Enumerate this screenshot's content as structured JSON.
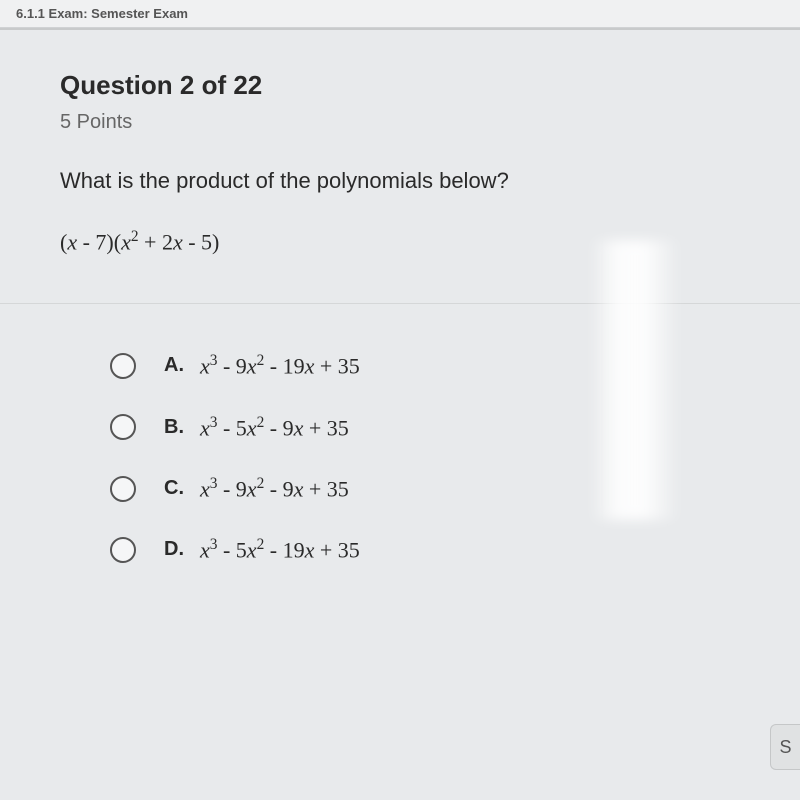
{
  "topbar": {
    "text": "6.1.1 Exam: Semester Exam"
  },
  "question": {
    "header": "Question 2 of 22",
    "points": "5 Points",
    "prompt": "What is the product of the polynomials below?",
    "expression_html": "(<span class='var'>x</span> - 7)(<span class='var'>x</span><sup>2</sup> + 2<span class='var'>x</span> - 5)"
  },
  "options": [
    {
      "label": "A.",
      "html": "<span class='var'>x</span><sup>3</sup> - 9<span class='var'>x</span><sup>2</sup> - 19<span class='var'>x</span> + 35"
    },
    {
      "label": "B.",
      "html": "<span class='var'>x</span><sup>3</sup> - 5<span class='var'>x</span><sup>2</sup> - 9<span class='var'>x</span> + 35"
    },
    {
      "label": "C.",
      "html": "<span class='var'>x</span><sup>3</sup> - 9<span class='var'>x</span><sup>2</sup> - 9<span class='var'>x</span> + 35"
    },
    {
      "label": "D.",
      "html": "<span class='var'>x</span><sup>3</sup> - 5<span class='var'>x</span><sup>2</sup> - 19<span class='var'>x</span> + 35"
    }
  ],
  "button": {
    "label": "S"
  },
  "colors": {
    "background": "#e8eaec",
    "text_primary": "#2a2a2a",
    "text_muted": "#666666",
    "radio_border": "#555555",
    "divider": "#c8cacb"
  }
}
